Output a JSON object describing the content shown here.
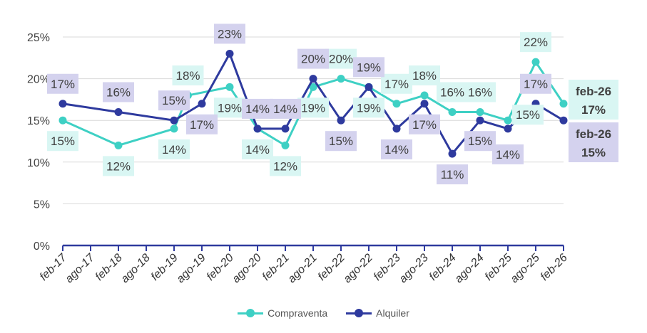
{
  "chart_data": {
    "type": "line",
    "title": "",
    "xlabel": "",
    "ylabel": "",
    "ylim": [
      0,
      25
    ],
    "y_ticks": [
      "0%",
      "5%",
      "10%",
      "15%",
      "20%",
      "25%"
    ],
    "y_tick_values": [
      0,
      5,
      10,
      15,
      20,
      25
    ],
    "grid": true,
    "legend_position": "bottom",
    "x_tick_labels": [
      "feb-17",
      "ago-17",
      "feb-18",
      "ago-18",
      "feb-19",
      "ago-19",
      "feb-20",
      "ago-20",
      "feb-21",
      "ago-21",
      "feb-22",
      "ago-22",
      "feb-23",
      "ago-23",
      "feb-24",
      "ago-24",
      "feb-25",
      "ago-25",
      "feb-26"
    ],
    "series": [
      {
        "name": "Compraventa",
        "color": "#3ED0C4",
        "label_bg": "#D9F6F3",
        "points": [
          {
            "x": 0,
            "y": 15,
            "label": "15%",
            "pos": "below"
          },
          {
            "x": 2,
            "y": 12,
            "label": "12%",
            "pos": "below"
          },
          {
            "x": 4,
            "y": 14,
            "label": "14%",
            "pos": "below"
          },
          {
            "x": 4.5,
            "y": 18,
            "label": "18%",
            "pos": "above"
          },
          {
            "x": 6,
            "y": 19,
            "label": "19%",
            "pos": "below"
          },
          {
            "x": 7,
            "y": 14,
            "label": "14%",
            "pos": "below"
          },
          {
            "x": 8,
            "y": 12,
            "label": "12%",
            "pos": "below"
          },
          {
            "x": 9,
            "y": 19,
            "label": "19%",
            "pos": "below"
          },
          {
            "x": 10,
            "y": 20,
            "label": "20%",
            "pos": "above"
          },
          {
            "x": 11,
            "y": 19,
            "label": "19%",
            "pos": "below"
          },
          {
            "x": 12,
            "y": 17,
            "label": "17%",
            "pos": "above"
          },
          {
            "x": 13,
            "y": 18,
            "label": "18%",
            "pos": "above"
          },
          {
            "x": 14,
            "y": 16,
            "label": "16%",
            "pos": "above"
          },
          {
            "x": 15,
            "y": 16,
            "label": "16%",
            "pos": "above"
          },
          {
            "x": 16,
            "y": 15,
            "label": "15%",
            "pos": "right"
          },
          {
            "x": 17,
            "y": 22,
            "label": "22%",
            "pos": "above"
          },
          {
            "x": 18,
            "y": 17,
            "label": "17%",
            "pos": "none"
          }
        ]
      },
      {
        "name": "Alquiler",
        "color": "#2E3A9E",
        "label_bg": "#D4D2EE",
        "points": [
          {
            "x": 0,
            "y": 17,
            "label": "17%",
            "pos": "above"
          },
          {
            "x": 2,
            "y": 16,
            "label": "16%",
            "pos": "above"
          },
          {
            "x": 4,
            "y": 15,
            "label": "15%",
            "pos": "above"
          },
          {
            "x": 5,
            "y": 17,
            "label": "17%",
            "pos": "below"
          },
          {
            "x": 6,
            "y": 23,
            "label": "23%",
            "pos": "above"
          },
          {
            "x": 7,
            "y": 14,
            "label": "14%",
            "pos": "above"
          },
          {
            "x": 8,
            "y": 14,
            "label": "14%",
            "pos": "above"
          },
          {
            "x": 9,
            "y": 20,
            "label": "20%",
            "pos": "above"
          },
          {
            "x": 10,
            "y": 15,
            "label": "15%",
            "pos": "below"
          },
          {
            "x": 11,
            "y": 19,
            "label": "19%",
            "pos": "above"
          },
          {
            "x": 12,
            "y": 14,
            "label": "14%",
            "pos": "below"
          },
          {
            "x": 13,
            "y": 17,
            "label": "17%",
            "pos": "below"
          },
          {
            "x": 14,
            "y": 11,
            "label": "11%",
            "pos": "below"
          },
          {
            "x": 15,
            "y": 15,
            "label": "15%",
            "pos": "below"
          },
          {
            "x": 16,
            "y": 14,
            "label": "14%",
            "pos": "farbelow"
          },
          {
            "x": 17,
            "y": 17,
            "label": "17%",
            "pos": "above"
          },
          {
            "x": 18,
            "y": 15,
            "label": "15%",
            "pos": "none"
          }
        ]
      }
    ],
    "end_labels": [
      {
        "series": "Compraventa",
        "period": "feb-26",
        "value": "17%"
      },
      {
        "series": "Alquiler",
        "period": "feb-26",
        "value": "15%"
      }
    ]
  }
}
